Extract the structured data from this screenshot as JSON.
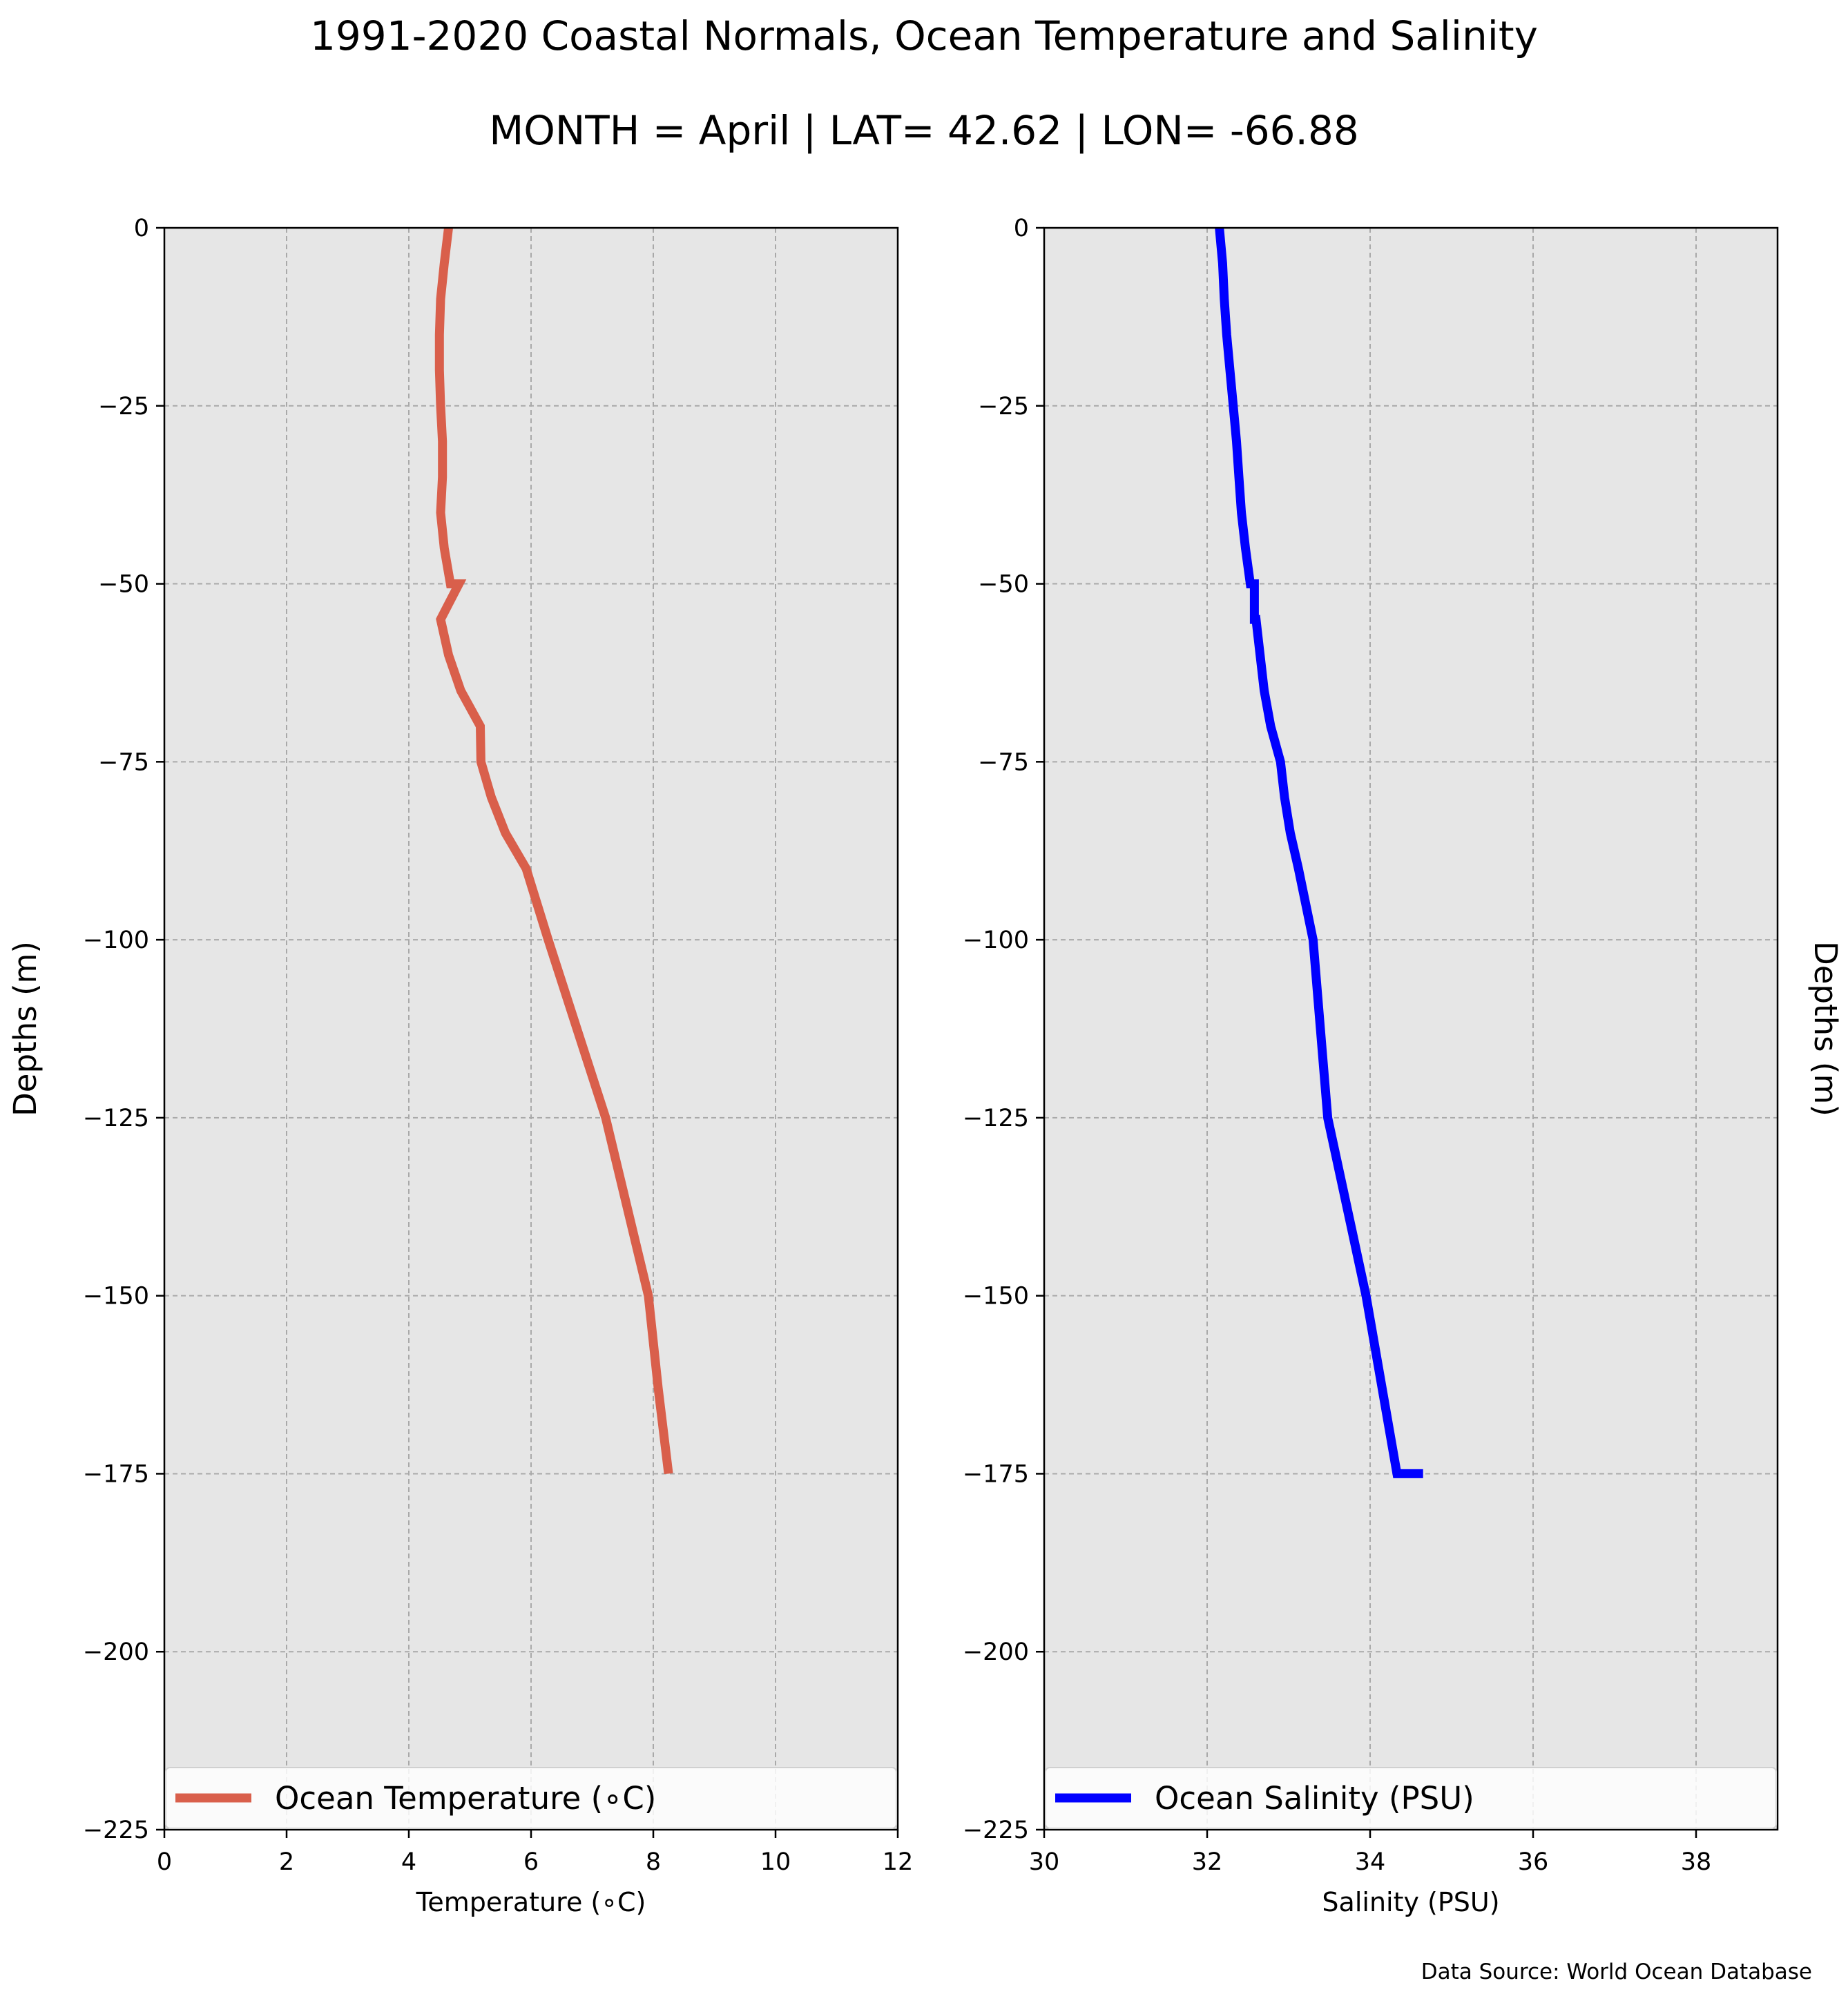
{
  "figure": {
    "title": "1991-2020 Coastal Normals, Ocean Temperature and Salinity",
    "subtitle": "MONTH = April | LAT= 42.62 | LON= -66.88",
    "source_note": "Data Source: World Ocean Database",
    "panel_background": "#e6e6e6",
    "grid_color": "#a9a9a9"
  },
  "chart_data": [
    {
      "type": "line",
      "xlabel": "Temperature ($^\\circ$C)",
      "xlabel_display": "Temperature (∘C)",
      "ylabel": "Depths (m)",
      "ylabel_side": "left",
      "xlim": [
        0,
        12
      ],
      "ylim": [
        -225,
        0
      ],
      "xticks": [
        0,
        2,
        4,
        6,
        8,
        10,
        12
      ],
      "xtick_labels": [
        "0",
        "2",
        "4",
        "6",
        "8",
        "10",
        "12"
      ],
      "yticks": [
        0,
        -25,
        -50,
        -75,
        -100,
        -125,
        -150,
        -175,
        -200,
        -225
      ],
      "ytick_labels": [
        "0",
        "−25",
        "−50",
        "−75",
        "−100",
        "−125",
        "−150",
        "−175",
        "−200",
        "−225"
      ],
      "grid": true,
      "legend_position": "lower center",
      "series": [
        {
          "name": "Ocean Temperature (∘C)",
          "color": "#d95f4b",
          "x": [
            4.65,
            4.58,
            4.52,
            4.5,
            4.5,
            4.52,
            4.55,
            4.55,
            4.52,
            4.58,
            4.68,
            4.82,
            4.52,
            4.65,
            4.85,
            5.17,
            5.18,
            5.35,
            5.58,
            5.92,
            6.28,
            7.22,
            7.92,
            8.08,
            8.25
          ],
          "y": [
            0,
            -5,
            -10,
            -15,
            -20,
            -25,
            -30,
            -35,
            -40,
            -45,
            -50,
            -50,
            -55,
            -60,
            -65,
            -70,
            -75,
            -80,
            -85,
            -90,
            -100,
            -125,
            -150,
            -163,
            -175
          ]
        }
      ]
    },
    {
      "type": "line",
      "xlabel": "Salinity (PSU)",
      "xlabel_display": "Salinity (PSU)",
      "ylabel": "Depths (m)",
      "ylabel_side": "right",
      "xlim": [
        30,
        39
      ],
      "ylim": [
        -225,
        0
      ],
      "xticks": [
        30,
        32,
        34,
        36,
        38
      ],
      "xtick_labels": [
        "30",
        "32",
        "34",
        "36",
        "38"
      ],
      "yticks": [
        0,
        -25,
        -50,
        -75,
        -100,
        -125,
        -150,
        -175,
        -200,
        -225
      ],
      "ytick_labels": [
        "0",
        "−25",
        "−50",
        "−75",
        "−100",
        "−125",
        "−150",
        "−175",
        "−200",
        "−225"
      ],
      "grid": true,
      "legend_position": "lower center",
      "series": [
        {
          "name": "Ocean Salinity (PSU)",
          "color": "#0000ff",
          "x": [
            32.15,
            32.19,
            32.21,
            32.24,
            32.28,
            32.32,
            32.36,
            32.39,
            32.42,
            32.47,
            32.53,
            32.58,
            32.58,
            32.6,
            32.65,
            32.7,
            32.78,
            32.9,
            32.95,
            33.02,
            33.12,
            33.3,
            33.48,
            33.95,
            34.33,
            34.65
          ],
          "y": [
            0,
            -5,
            -10,
            -15,
            -20,
            -25,
            -30,
            -35,
            -40,
            -45,
            -50,
            -50,
            -55,
            -55,
            -60,
            -65,
            -70,
            -75,
            -80,
            -85,
            -90,
            -100,
            -125,
            -150,
            -175,
            -175
          ]
        }
      ]
    }
  ]
}
